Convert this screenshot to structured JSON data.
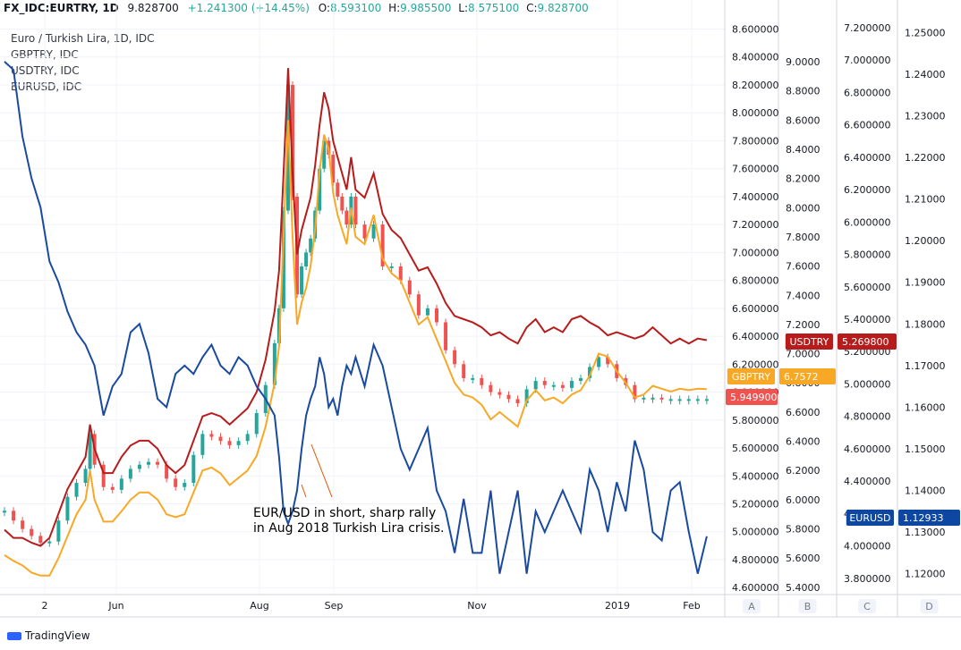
{
  "header": {
    "symbol": "FX_IDC:EURTRY, 1D",
    "last": "9.828700",
    "change": "+1.241300 (+14.45%)",
    "o_label": "O:",
    "o_val": "8.593100",
    "h_label": "H:",
    "h_val": "9.985500",
    "l_label": "L:",
    "l_val": "8.575100",
    "c_label": "C:",
    "c_val": "9.828700"
  },
  "legend": [
    "Euro / Turkish Lira, 1D, IDC",
    "GBPTRY, IDC",
    "USDTRY, IDC",
    "EURUSD, IDC"
  ],
  "annotation": [
    "EUR/USD in short, sharp rally",
    "in Aug 2018 Turkish Lira crisis."
  ],
  "footer": {
    "brand": "TradingView"
  },
  "chart_data": {
    "type": "line",
    "x_axis": {
      "labels": [
        "2",
        "Jun",
        "Aug",
        "Sep",
        "Nov",
        "2019",
        "Feb"
      ]
    },
    "axes": [
      {
        "id": "A",
        "ticks": [
          "4.600000",
          "4.800000",
          "5.000000",
          "5.200000",
          "5.400000",
          "5.600000",
          "5.800000",
          "6.000000",
          "6.200000",
          "6.400000",
          "6.600000",
          "6.800000",
          "7.000000",
          "7.200000",
          "7.400000",
          "7.600000",
          "7.800000",
          "8.000000",
          "8.200000",
          "8.400000",
          "8.600000"
        ],
        "range": [
          4.55,
          8.68
        ]
      },
      {
        "id": "B",
        "ticks": [
          "5.4000",
          "5.6000",
          "5.8000",
          "6.0000",
          "6.2000",
          "6.4000",
          "6.6000",
          "6.8000",
          "7.0000",
          "7.2000",
          "7.4000",
          "7.6000",
          "7.8000",
          "8.0000",
          "8.2000",
          "8.4000",
          "8.6000",
          "8.8000",
          "9.0000"
        ],
        "range": [
          5.35,
          9.3
        ]
      },
      {
        "id": "C",
        "ticks": [
          "3.800000",
          "4.000000",
          "4.200000",
          "4.400000",
          "4.600000",
          "4.800000",
          "5.000000",
          "5.200000",
          "5.400000",
          "5.600000",
          "5.800000",
          "6.000000",
          "6.200000",
          "6.400000",
          "6.600000",
          "6.800000",
          "7.000000",
          "7.200000"
        ],
        "range": [
          3.7,
          7.26
        ]
      },
      {
        "id": "D",
        "ticks": [
          "1.12000",
          "1.13000",
          "1.14000",
          "1.15000",
          "1.16000",
          "1.17000",
          "1.18000",
          "1.19000",
          "1.20000",
          "1.21000",
          "1.22000",
          "1.23000",
          "1.24000",
          "1.25000"
        ],
        "range": [
          1.115,
          1.2535
        ]
      }
    ],
    "axis_footer_labels": [
      "A",
      "B",
      "C",
      "D"
    ],
    "price_tags": [
      {
        "label": "USDTRY",
        "value": "5.269800",
        "color": "#b71c1c"
      },
      {
        "label": "GBPTRY",
        "value": "6.7572",
        "color": "#f9a825"
      },
      {
        "label": "",
        "value": "5.949900",
        "color": "#ef5350"
      },
      {
        "label": "EURUSD",
        "value": "1.12933",
        "color": "#0d47a1"
      }
    ],
    "series": [
      {
        "name": "EURTRY",
        "type": "candlestick",
        "axis": "A",
        "color_up": "#26a69a",
        "color_down": "#ef5350",
        "x": [
          0,
          10,
          20,
          30,
          40,
          50,
          60,
          70,
          80,
          90,
          95,
          100,
          110,
          120,
          130,
          140,
          150,
          160,
          170,
          180,
          190,
          200,
          210,
          220,
          230,
          240,
          250,
          260,
          270,
          280,
          290,
          300,
          305,
          310,
          315,
          320,
          325,
          330,
          335,
          340,
          345,
          350,
          355,
          360,
          365,
          370,
          375,
          380,
          385,
          390,
          400,
          410,
          420,
          430,
          440,
          450,
          460,
          470,
          480,
          490,
          500,
          510,
          520,
          530,
          540,
          550,
          560,
          570,
          580,
          590,
          600,
          610,
          620,
          630,
          640,
          650,
          660,
          670,
          680,
          690,
          700,
          710,
          720,
          730,
          740,
          750,
          760,
          770,
          780
        ],
        "values": [
          5.15,
          5.08,
          5.02,
          4.97,
          4.92,
          4.93,
          5.08,
          5.25,
          5.35,
          5.45,
          5.7,
          5.48,
          5.32,
          5.3,
          5.38,
          5.45,
          5.48,
          5.5,
          5.48,
          5.38,
          5.32,
          5.35,
          5.55,
          5.7,
          5.68,
          5.65,
          5.62,
          5.65,
          5.7,
          5.85,
          6.05,
          6.35,
          6.6,
          7.3,
          8.2,
          7.4,
          6.7,
          6.9,
          7.0,
          7.1,
          7.3,
          7.6,
          7.8,
          7.7,
          7.5,
          7.4,
          7.3,
          7.2,
          7.4,
          7.2,
          7.1,
          7.2,
          6.9,
          6.9,
          6.8,
          6.7,
          6.55,
          6.6,
          6.5,
          6.3,
          6.2,
          6.1,
          6.1,
          6.05,
          6.0,
          5.98,
          5.95,
          5.92,
          6.02,
          6.08,
          6.05,
          6.05,
          6.03,
          6.08,
          6.1,
          6.18,
          6.25,
          6.2,
          6.1,
          6.05,
          5.95,
          5.96,
          5.96,
          5.95,
          5.95,
          5.95,
          5.95,
          5.95,
          5.95
        ]
      },
      {
        "name": "USDTRY",
        "axis": "C",
        "color": "#b71c1c",
        "x": [
          0,
          10,
          20,
          30,
          40,
          50,
          60,
          70,
          80,
          90,
          95,
          100,
          110,
          120,
          130,
          140,
          150,
          160,
          170,
          180,
          190,
          200,
          210,
          220,
          230,
          240,
          250,
          260,
          270,
          280,
          290,
          300,
          305,
          310,
          315,
          320,
          325,
          330,
          335,
          340,
          345,
          350,
          355,
          360,
          365,
          370,
          375,
          380,
          385,
          390,
          400,
          410,
          420,
          430,
          440,
          450,
          460,
          470,
          480,
          490,
          500,
          510,
          520,
          530,
          540,
          550,
          560,
          570,
          580,
          590,
          600,
          610,
          620,
          630,
          640,
          650,
          660,
          670,
          680,
          690,
          700,
          710,
          720,
          730,
          740,
          750,
          760,
          770,
          780
        ],
        "values": [
          4.1,
          4.05,
          4.05,
          4.02,
          4.0,
          4.05,
          4.2,
          4.35,
          4.45,
          4.55,
          4.75,
          4.6,
          4.45,
          4.45,
          4.55,
          4.62,
          4.65,
          4.65,
          4.6,
          4.5,
          4.45,
          4.5,
          4.65,
          4.8,
          4.82,
          4.8,
          4.75,
          4.8,
          4.85,
          4.95,
          5.15,
          5.45,
          5.7,
          6.3,
          6.95,
          6.3,
          5.8,
          5.95,
          6.05,
          6.15,
          6.35,
          6.6,
          6.8,
          6.7,
          6.5,
          6.4,
          6.3,
          6.2,
          6.4,
          6.2,
          6.15,
          6.3,
          6.05,
          5.95,
          5.9,
          5.8,
          5.7,
          5.72,
          5.62,
          5.5,
          5.42,
          5.4,
          5.38,
          5.35,
          5.3,
          5.32,
          5.28,
          5.25,
          5.35,
          5.4,
          5.32,
          5.35,
          5.32,
          5.4,
          5.42,
          5.38,
          5.35,
          5.3,
          5.32,
          5.3,
          5.28,
          5.3,
          5.35,
          5.3,
          5.25,
          5.28,
          5.25,
          5.28,
          5.27
        ]
      },
      {
        "name": "GBPTRY",
        "axis": "B",
        "color": "#f9a825",
        "x": [
          0,
          10,
          20,
          30,
          40,
          50,
          60,
          70,
          80,
          90,
          95,
          100,
          110,
          120,
          130,
          140,
          150,
          160,
          170,
          180,
          190,
          200,
          210,
          220,
          230,
          240,
          250,
          260,
          270,
          280,
          290,
          300,
          305,
          310,
          315,
          320,
          325,
          330,
          335,
          340,
          345,
          350,
          355,
          360,
          365,
          370,
          375,
          380,
          385,
          390,
          400,
          410,
          420,
          430,
          440,
          450,
          460,
          470,
          480,
          490,
          500,
          510,
          520,
          530,
          540,
          550,
          560,
          570,
          580,
          590,
          600,
          610,
          620,
          630,
          640,
          650,
          660,
          670,
          680,
          690,
          700,
          710,
          720,
          730,
          740,
          750,
          760,
          770,
          780
        ],
        "values": [
          5.62,
          5.58,
          5.55,
          5.5,
          5.48,
          5.48,
          5.6,
          5.75,
          5.9,
          6.0,
          6.2,
          6.0,
          5.85,
          5.85,
          5.92,
          6.0,
          6.05,
          6.05,
          6.0,
          5.9,
          5.88,
          5.9,
          6.05,
          6.2,
          6.22,
          6.18,
          6.1,
          6.15,
          6.2,
          6.3,
          6.5,
          6.8,
          7.05,
          7.8,
          8.6,
          7.8,
          7.2,
          7.35,
          7.45,
          7.6,
          7.85,
          8.25,
          8.5,
          8.4,
          8.1,
          7.95,
          7.85,
          7.75,
          8.0,
          7.8,
          7.75,
          7.95,
          7.65,
          7.55,
          7.5,
          7.35,
          7.2,
          7.25,
          7.1,
          6.95,
          6.8,
          6.72,
          6.7,
          6.65,
          6.55,
          6.6,
          6.55,
          6.5,
          6.68,
          6.75,
          6.68,
          6.7,
          6.66,
          6.72,
          6.75,
          6.85,
          7.0,
          6.98,
          6.88,
          6.8,
          6.7,
          6.72,
          6.78,
          6.76,
          6.74,
          6.76,
          6.75,
          6.76,
          6.757
        ]
      },
      {
        "name": "EURUSD",
        "axis": "D",
        "color": "#1a4aa0",
        "x": [
          0,
          10,
          20,
          30,
          40,
          50,
          60,
          70,
          80,
          90,
          100,
          110,
          120,
          130,
          140,
          150,
          160,
          170,
          180,
          190,
          200,
          210,
          220,
          230,
          240,
          250,
          260,
          270,
          280,
          290,
          300,
          305,
          310,
          315,
          320,
          325,
          330,
          335,
          340,
          345,
          350,
          355,
          360,
          365,
          370,
          375,
          380,
          385,
          390,
          400,
          410,
          420,
          430,
          440,
          450,
          460,
          470,
          480,
          490,
          500,
          510,
          520,
          530,
          540,
          550,
          560,
          570,
          580,
          590,
          600,
          610,
          620,
          630,
          640,
          650,
          660,
          670,
          680,
          690,
          700,
          710,
          720,
          730,
          740,
          750,
          760,
          770,
          780
        ],
        "values": [
          1.243,
          1.241,
          1.225,
          1.215,
          1.208,
          1.195,
          1.19,
          1.183,
          1.178,
          1.175,
          1.17,
          1.158,
          1.165,
          1.168,
          1.178,
          1.18,
          1.173,
          1.162,
          1.16,
          1.168,
          1.17,
          1.168,
          1.172,
          1.175,
          1.17,
          1.168,
          1.172,
          1.17,
          1.165,
          1.162,
          1.158,
          1.148,
          1.135,
          1.132,
          1.135,
          1.14,
          1.15,
          1.158,
          1.162,
          1.165,
          1.172,
          1.168,
          1.16,
          1.162,
          1.158,
          1.165,
          1.17,
          1.168,
          1.172,
          1.165,
          1.175,
          1.17,
          1.16,
          1.15,
          1.145,
          1.15,
          1.155,
          1.14,
          1.135,
          1.125,
          1.138,
          1.125,
          1.125,
          1.14,
          1.12,
          1.13,
          1.14,
          1.12,
          1.135,
          1.13,
          1.135,
          1.14,
          1.135,
          1.13,
          1.145,
          1.14,
          1.13,
          1.142,
          1.135,
          1.152,
          1.145,
          1.13,
          1.128,
          1.14,
          1.142,
          1.13,
          1.12,
          1.129
        ]
      }
    ]
  }
}
